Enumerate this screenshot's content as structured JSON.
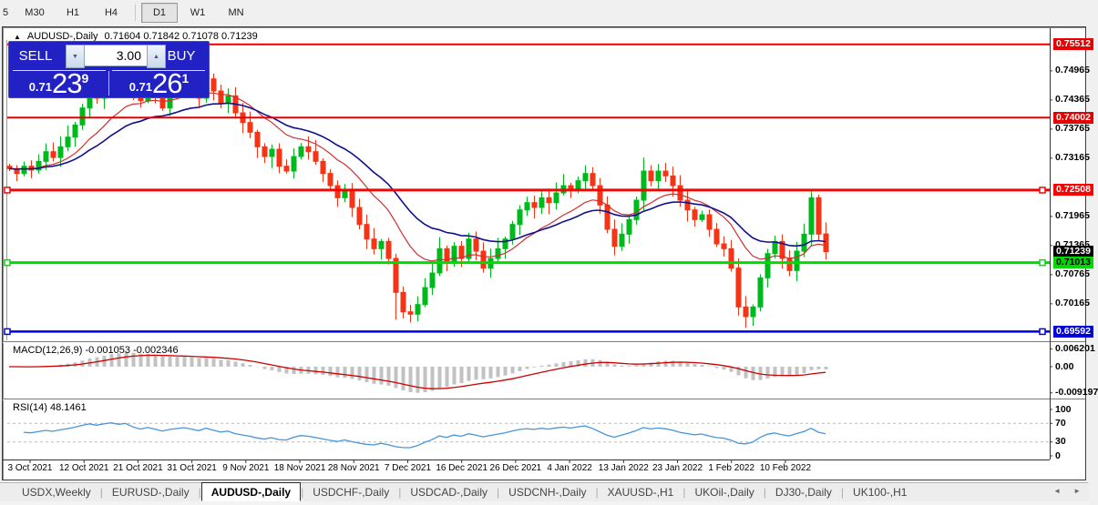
{
  "toolbar": {
    "timeframes": [
      {
        "label": "5",
        "active": false
      },
      {
        "label": "M30",
        "active": false
      },
      {
        "label": "H1",
        "active": false
      },
      {
        "label": "H4",
        "active": false
      },
      {
        "label": "|",
        "divider": true
      },
      {
        "label": "D1",
        "active": true
      },
      {
        "label": "W1",
        "active": false
      },
      {
        "label": "MN",
        "active": false
      }
    ]
  },
  "window": {
    "collapse_arrow": "▲",
    "symbol_title": "AUDUSD-,Daily",
    "ohlc_text": "0.71604 0.71842 0.71078 0.71239"
  },
  "trade_panel": {
    "sell_label": "SELL",
    "buy_label": "BUY",
    "volume": "3.00",
    "spinner_down": "▼",
    "spinner_up": "▲",
    "sell_price_small": "0.71",
    "sell_price_big": "23",
    "sell_price_sup": "9",
    "buy_price_small": "0.71",
    "buy_price_big": "26",
    "buy_price_sup": "1"
  },
  "price_axis": {
    "plain_ticks": [
      "0.74965",
      "0.74365",
      "0.73765",
      "0.73165",
      "0.71965",
      "0.71365",
      "0.70765",
      "0.70165"
    ],
    "badges": [
      {
        "value": "0.75512",
        "bg": "#e80000",
        "fg": "#ffffff"
      },
      {
        "value": "0.74002",
        "bg": "#e80000",
        "fg": "#ffffff"
      },
      {
        "value": "0.72508",
        "bg": "#ff0000",
        "fg": "#ffffff"
      },
      {
        "value": "0.71239",
        "bg": "#000000",
        "fg": "#ffffff"
      },
      {
        "value": "0.71013",
        "bg": "#00d800",
        "fg": "#000000"
      },
      {
        "value": "0.69592",
        "bg": "#0000d8",
        "fg": "#ffffff"
      }
    ]
  },
  "indicators": {
    "macd_label": "MACD(12,26,9) -0.001053 -0.002346",
    "macd_axis": [
      "0.006201",
      "0.00",
      "-0.009197"
    ],
    "rsi_label": "RSI(14) 48.1461",
    "rsi_axis": [
      "100",
      "70",
      "30",
      "0"
    ]
  },
  "date_axis": {
    "dates": [
      "3 Oct 2021",
      "12 Oct 2021",
      "21 Oct 2021",
      "31 Oct 2021",
      "9 Nov 2021",
      "18 Nov 2021",
      "28 Nov 2021",
      "7 Dec 2021",
      "16 Dec 2021",
      "26 Dec 2021",
      "4 Jan 2022",
      "13 Jan 2022",
      "23 Jan 2022",
      "1 Feb 2022",
      "10 Feb 2022"
    ]
  },
  "tabs": {
    "items": [
      "USDX,Weekly",
      "EURUSD-,Daily",
      "AUDUSD-,Daily",
      "USDCHF-,Daily",
      "USDCAD-,Daily",
      "USDCNH-,Daily",
      "XAUUSD-,H1",
      "UKOil-,Daily",
      "DJ30-,Daily",
      "UK100-,H1"
    ],
    "active_index": 2,
    "scroll_left": "◄",
    "scroll_right": "►"
  },
  "chart_data": {
    "type": "candlestick",
    "title": "AUDUSD-,Daily",
    "symbol": "AUDUSD",
    "timeframe": "Daily",
    "last_ohlc": {
      "open": 0.71604,
      "high": 0.71842,
      "low": 0.71078,
      "close": 0.71239
    },
    "ylim": [
      0.694,
      0.756
    ],
    "closes": [
      0.7295,
      0.7285,
      0.73,
      0.7292,
      0.731,
      0.733,
      0.7318,
      0.734,
      0.736,
      0.7385,
      0.742,
      0.7455,
      0.744,
      0.747,
      0.7495,
      0.748,
      0.7498,
      0.746,
      0.7435,
      0.7465,
      0.7445,
      0.742,
      0.7445,
      0.746,
      0.7475,
      0.746,
      0.744,
      0.748,
      0.7455,
      0.743,
      0.7445,
      0.741,
      0.739,
      0.737,
      0.734,
      0.732,
      0.7335,
      0.73,
      0.729,
      0.732,
      0.734,
      0.733,
      0.731,
      0.7285,
      0.726,
      0.7235,
      0.725,
      0.7215,
      0.718,
      0.715,
      0.713,
      0.7145,
      0.711,
      0.704,
      0.7,
      0.6995,
      0.7015,
      0.705,
      0.708,
      0.713,
      0.71,
      0.7135,
      0.711,
      0.715,
      0.7125,
      0.709,
      0.711,
      0.713,
      0.715,
      0.718,
      0.721,
      0.7225,
      0.7215,
      0.7235,
      0.7225,
      0.7245,
      0.726,
      0.725,
      0.727,
      0.7285,
      0.726,
      0.722,
      0.717,
      0.7135,
      0.716,
      0.719,
      0.723,
      0.729,
      0.727,
      0.729,
      0.728,
      0.726,
      0.723,
      0.721,
      0.719,
      0.72,
      0.717,
      0.714,
      0.713,
      0.709,
      0.701,
      0.699,
      0.701,
      0.707,
      0.712,
      0.7145,
      0.711,
      0.7085,
      0.7125,
      0.716,
      0.7235,
      0.716,
      0.71239
    ],
    "wick_overrides": {
      "14": {
        "h": 0.7515
      },
      "40": {
        "h": 0.7348
      },
      "53": {
        "l": 0.6984
      },
      "55": {
        "l": 0.6978
      },
      "79": {
        "h": 0.7302
      },
      "87": {
        "h": 0.7318
      },
      "101": {
        "l": 0.6967
      },
      "110": {
        "h": 0.7252
      },
      "112": {
        "o": 0.71604,
        "h": 0.71842,
        "l": 0.71078
      }
    },
    "hlines": [
      {
        "price": 0.75512,
        "color": "#e80000",
        "width": 2,
        "handles": false
      },
      {
        "price": 0.74002,
        "color": "#e80000",
        "width": 2,
        "handles": false
      },
      {
        "price": 0.72508,
        "color": "#ff0000",
        "width": 3,
        "handles": true
      },
      {
        "price": 0.71013,
        "color": "#00dc00",
        "width": 3,
        "handles": true
      },
      {
        "price": 0.69592,
        "color": "#0000e0",
        "width": 2.5,
        "handles": true
      }
    ],
    "moving_averages": [
      {
        "period": 13,
        "color": "#d03030"
      },
      {
        "period": 24,
        "color": "#101090"
      }
    ],
    "indicators": [
      {
        "name": "MACD",
        "params": [
          12,
          26,
          9
        ],
        "current": [
          -0.001053,
          -0.002346
        ],
        "axis_values": [
          0.006201,
          0.0,
          -0.009197
        ],
        "histogram_color": "#c2c2c2",
        "signal_color": "#cc0000"
      },
      {
        "name": "RSI",
        "params": [
          14
        ],
        "current": 48.1461,
        "levels": [
          70,
          30
        ],
        "axis_values": [
          100,
          70,
          30,
          0
        ],
        "line_color": "#4695dc"
      }
    ]
  },
  "colors": {
    "candle_up": "#00b81e",
    "candle_down": "#f23417",
    "macd_hist": "#c2c2c2",
    "macd_signal": "#cc0000",
    "rsi_line": "#4695dc",
    "level_dash": "#bbbbbb",
    "panel_blue": "#2121c4"
  }
}
